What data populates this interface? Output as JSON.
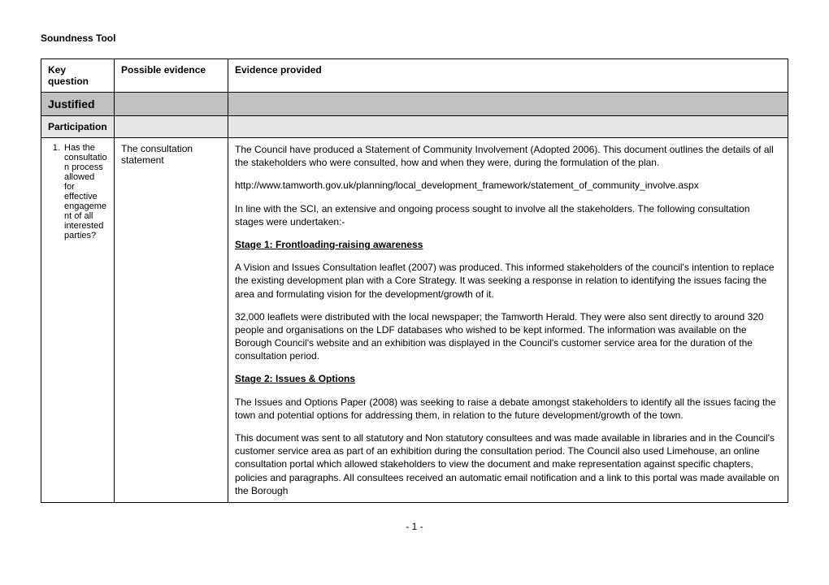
{
  "title": "Soundness Tool",
  "headers": {
    "col1": "Key question",
    "col2": "Possible evidence",
    "col3": "Evidence provided"
  },
  "rows": {
    "justified": "Justified",
    "participation": "Participation"
  },
  "keyQuestion": {
    "number": "1.",
    "text": "Has the consultation process allowed for effective engagement of all interested parties?"
  },
  "possibleEvidence": "The consultation statement",
  "evidence": {
    "p1": "The Council have produced a Statement of Community Involvement (Adopted 2006). This document outlines the details of all the stakeholders who were consulted, how and when they were, during the formulation of the plan.",
    "link": "http://www.tamworth.gov.uk/planning/local_development_framework/statement_of_community_involve.aspx",
    "p2": "In line with the SCI, an extensive and ongoing process sought to involve all the stakeholders. The following consultation stages were undertaken:-",
    "stage1": "Stage 1: Frontloading-raising awareness",
    "p3": "A Vision and Issues Consultation leaflet (2007) was produced. This informed stakeholders of the council's intention to replace the existing development plan with a Core Strategy. It was seeking a response in relation to identifying the issues facing the area and formulating vision for the development/growth of it.",
    "p4": "32,000 leaflets were distributed with the local newspaper; the Tamworth Herald. They were also sent directly to around 320 people and organisations on the LDF databases who wished to be kept informed. The information was available on the Borough Council's website and an exhibition was displayed in the Council's customer service area for the duration of the consultation period.",
    "stage2": "Stage 2: Issues & Options",
    "p5": "The Issues and Options Paper (2008) was seeking to raise a debate amongst stakeholders to identify all the issues facing the town and potential options for addressing them, in relation to the future development/growth of the town.",
    "p6": "This document was sent to all statutory and Non statutory consultees and was made available in libraries and in the Council's customer service area as part of an exhibition during the consultation period. The Council also used Limehouse, an online consultation portal which allowed stakeholders to view the document and make representation against specific chapters, policies and paragraphs. All consultees received an automatic email notification and a link to this portal was made available on  the Borough"
  },
  "footer": "- 1 -"
}
